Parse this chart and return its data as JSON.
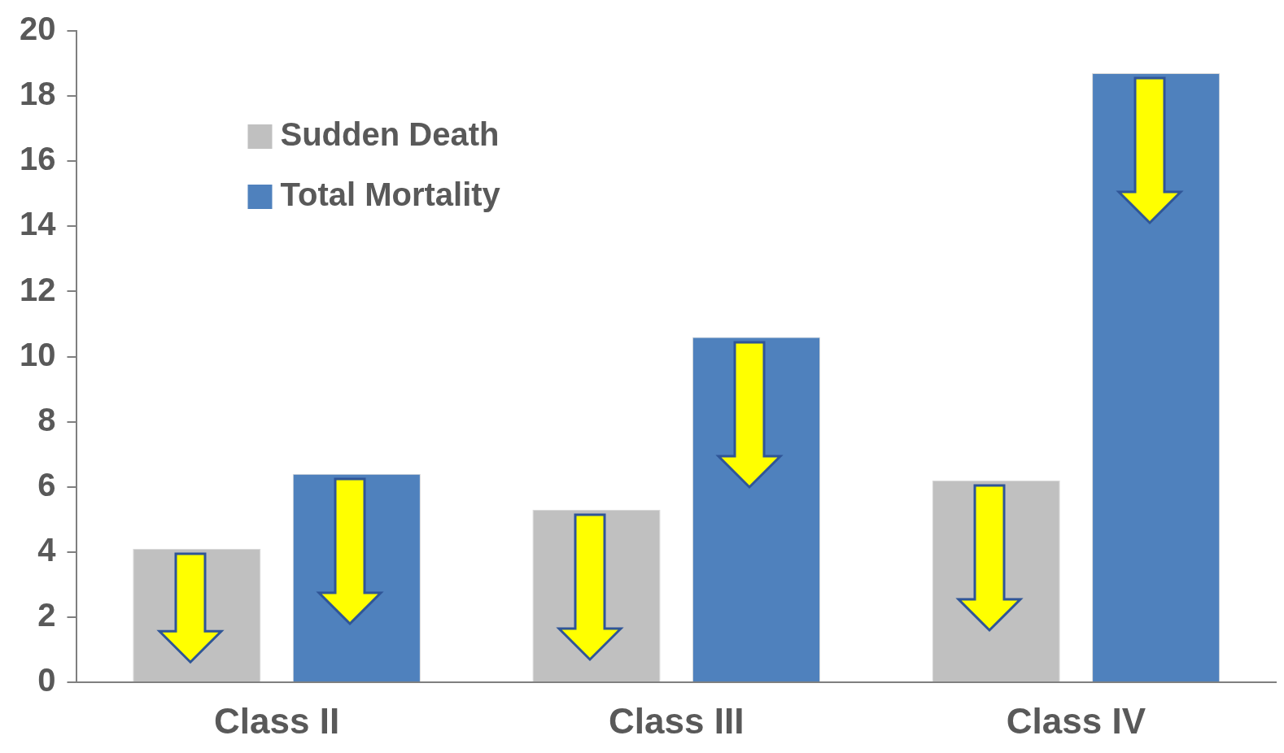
{
  "chart_data": {
    "type": "bar",
    "categories": [
      "Class II",
      "Class III",
      "Class IV"
    ],
    "series": [
      {
        "name": "Sudden Death",
        "color": "#c0c0c0",
        "values": [
          4.1,
          5.3,
          6.2
        ]
      },
      {
        "name": "Total Mortality",
        "color": "#4f81bd",
        "values": [
          6.4,
          10.6,
          18.7
        ]
      }
    ],
    "ylim": [
      0,
      20
    ],
    "yticks": [
      0,
      2,
      4,
      6,
      8,
      10,
      12,
      14,
      16,
      18,
      20
    ],
    "grid": false,
    "legend": "top left"
  }
}
